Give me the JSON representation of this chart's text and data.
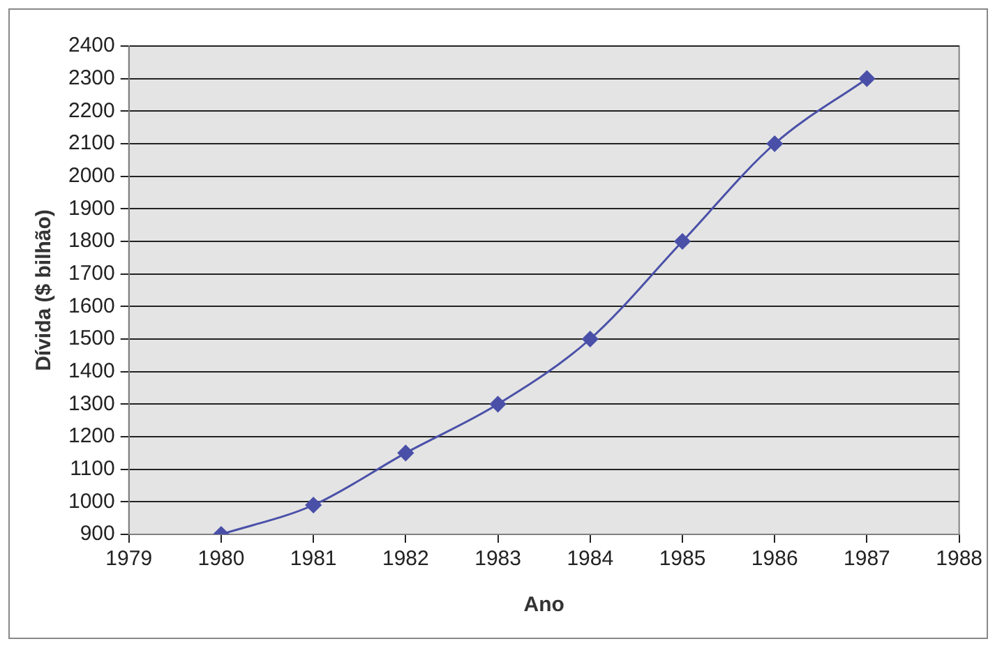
{
  "chart_data": {
    "type": "line",
    "xlabel": "Ano",
    "ylabel": "Dívida ($ bilhão)",
    "x": [
      1980,
      1981,
      1982,
      1983,
      1984,
      1985,
      1986,
      1987
    ],
    "series": [
      {
        "color": "#4a50a8",
        "values": [
          900,
          990,
          1150,
          1300,
          1500,
          1800,
          2100,
          2300
        ]
      }
    ],
    "xlim": [
      1979,
      1988
    ],
    "xticks": [
      1979,
      1980,
      1981,
      1982,
      1983,
      1984,
      1985,
      1986,
      1987,
      1988
    ],
    "ylim": [
      900,
      2400
    ],
    "yticks": [
      900,
      1000,
      1100,
      1200,
      1300,
      1400,
      1500,
      1600,
      1700,
      1800,
      1900,
      2000,
      2100,
      2200,
      2300,
      2400
    ],
    "grid": "y",
    "legend": false,
    "marker": "diamond",
    "line_style": "solid"
  }
}
